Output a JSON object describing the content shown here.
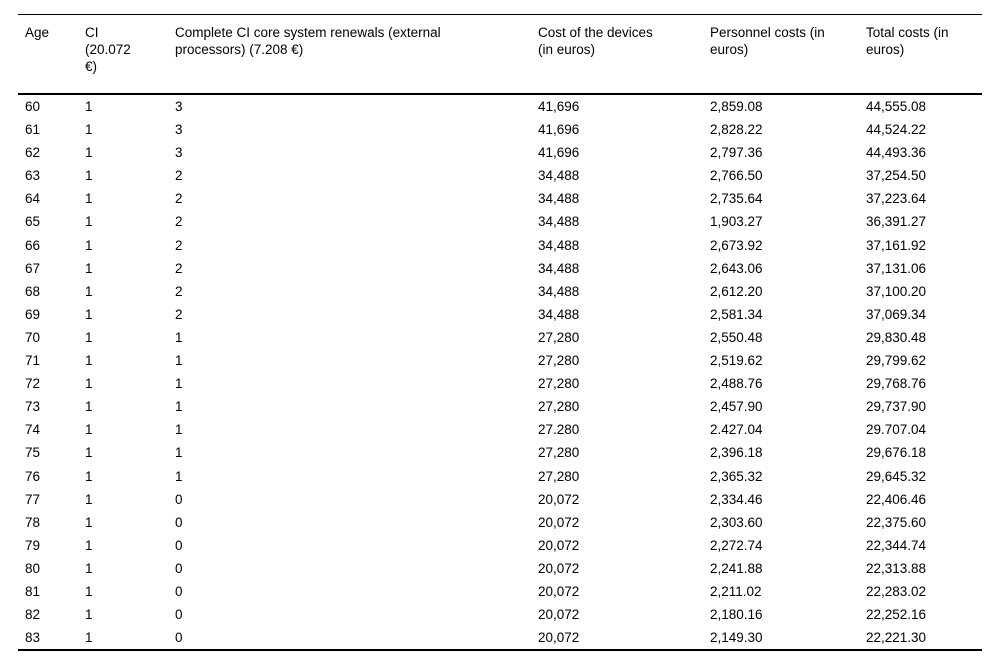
{
  "table": {
    "columns": [
      {
        "label": "Age"
      },
      {
        "label": "CI (20.072 €)"
      },
      {
        "label": "Complete CI core system renewals (external processors) (7.208 €)"
      },
      {
        "label": "Cost of the devices (in euros)"
      },
      {
        "label": "Personnel costs (in euros)"
      },
      {
        "label": "Total costs (in euros)"
      }
    ],
    "rows": [
      [
        "60",
        "1",
        "3",
        "41,696",
        "2,859.08",
        "44,555.08"
      ],
      [
        "61",
        "1",
        "3",
        "41,696",
        "2,828.22",
        "44,524.22"
      ],
      [
        "62",
        "1",
        "3",
        "41,696",
        "2,797.36",
        "44,493.36"
      ],
      [
        "63",
        "1",
        "2",
        "34,488",
        "2,766.50",
        "37,254.50"
      ],
      [
        "64",
        "1",
        "2",
        "34,488",
        "2,735.64",
        "37,223.64"
      ],
      [
        "65",
        "1",
        "2",
        "34,488",
        "1,903.27",
        "36,391.27"
      ],
      [
        "66",
        "1",
        "2",
        "34,488",
        "2,673.92",
        "37,161.92"
      ],
      [
        "67",
        "1",
        "2",
        "34,488",
        "2,643.06",
        "37,131.06"
      ],
      [
        "68",
        "1",
        "2",
        "34,488",
        "2,612.20",
        "37,100.20"
      ],
      [
        "69",
        "1",
        "2",
        "34,488",
        "2,581.34",
        "37,069.34"
      ],
      [
        "70",
        "1",
        "1",
        "27,280",
        "2,550.48",
        "29,830.48"
      ],
      [
        "71",
        "1",
        "1",
        "27,280",
        "2,519.62",
        "29,799.62"
      ],
      [
        "72",
        "1",
        "1",
        "27,280",
        "2,488.76",
        "29,768.76"
      ],
      [
        "73",
        "1",
        "1",
        "27,280",
        "2,457.90",
        "29,737.90"
      ],
      [
        "74",
        "1",
        "1",
        "27.280",
        "2.427.04",
        "29.707.04"
      ],
      [
        "75",
        "1",
        "1",
        "27,280",
        "2,396.18",
        "29,676.18"
      ],
      [
        "76",
        "1",
        "1",
        "27,280",
        "2,365.32",
        "29,645.32"
      ],
      [
        "77",
        "1",
        "0",
        "20,072",
        "2,334.46",
        "22,406.46"
      ],
      [
        "78",
        "1",
        "0",
        "20,072",
        "2,303.60",
        "22,375.60"
      ],
      [
        "79",
        "1",
        "0",
        "20,072",
        "2,272.74",
        "22,344.74"
      ],
      [
        "80",
        "1",
        "0",
        "20,072",
        "2,241.88",
        "22,313.88"
      ],
      [
        "81",
        "1",
        "0",
        "20,072",
        "2,211.02",
        "22,283.02"
      ],
      [
        "82",
        "1",
        "0",
        "20,072",
        "2,180.16",
        "22,252.16"
      ],
      [
        "83",
        "1",
        "0",
        "20,072",
        "2,149.30",
        "22,221.30"
      ]
    ]
  }
}
